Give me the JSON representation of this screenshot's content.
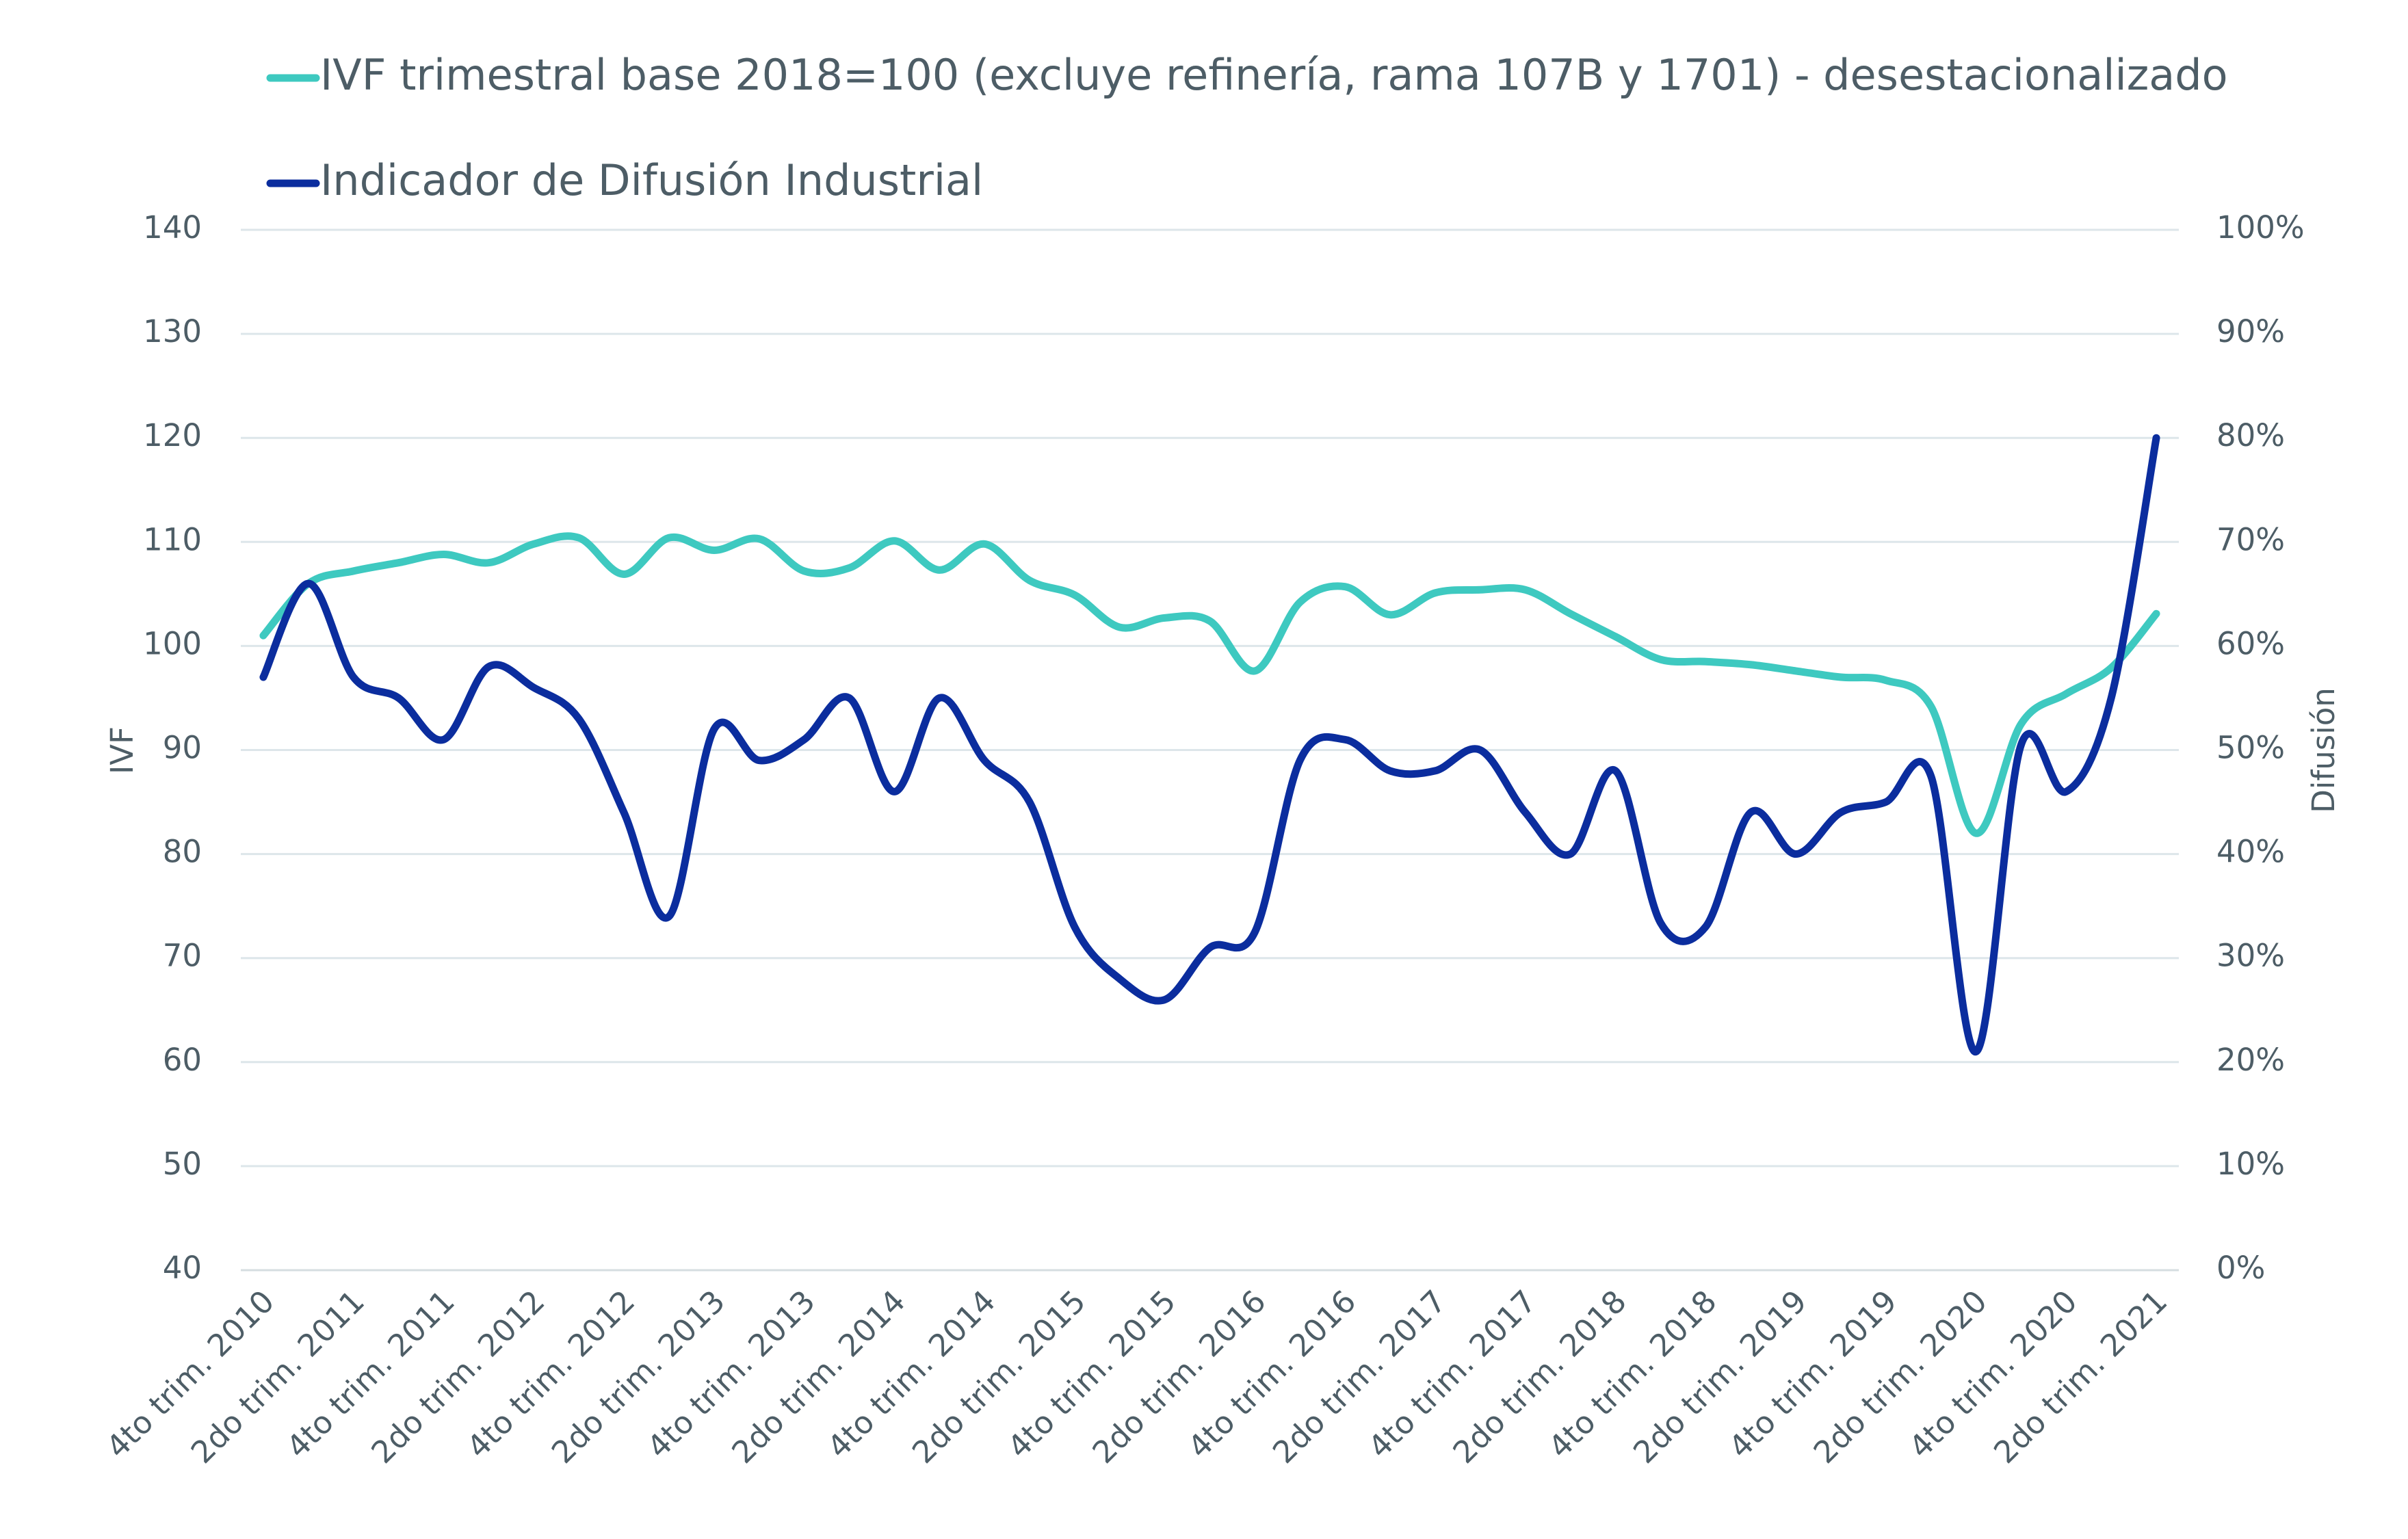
{
  "chart_data": {
    "type": "line",
    "categories": [
      "4to trim. 2010",
      null,
      "2do trim. 2011",
      null,
      "4to trim. 2011",
      null,
      "2do trim. 2012",
      null,
      "4to trim. 2012",
      null,
      "2do trim. 2013",
      null,
      "4to trim. 2013",
      null,
      "2do trim. 2014",
      null,
      "4to trim. 2014",
      null,
      "2do trim. 2015",
      null,
      "4to trim. 2015",
      null,
      "2do trim. 2016",
      null,
      "4to trim. 2016",
      null,
      "2do trim. 2017",
      null,
      "4to trim. 2017",
      null,
      "2do trim. 2018",
      null,
      "4to trim. 2018",
      null,
      "2do trim. 2019",
      null,
      "4to trim. 2019",
      null,
      "2do trim. 2020",
      null,
      "4to trim. 2020",
      null,
      "2do trim. 2021"
    ],
    "series": [
      {
        "name": "IVF trimestral base 2018=100 (excluye refinería, rama 107B y 1701) - desestacionalizado",
        "color": "#3ec9c0",
        "values": [
          101,
          106,
          107.2,
          108,
          108.8,
          108,
          109.8,
          110.4,
          106.9,
          110.4,
          109.2,
          110.3,
          107.2,
          107.5,
          110.1,
          107.3,
          109.8,
          106.3,
          104.9,
          101.8,
          102.7,
          102.4,
          97.6,
          104.2,
          105.7,
          103,
          105.1,
          105.4,
          105.4,
          103.1,
          100.9,
          98.7,
          98.5,
          98.2,
          97.6,
          97,
          96.7,
          94.2,
          82,
          92.5,
          95.4,
          97.9,
          103.1
        ]
      },
      {
        "name": "Indicador de Difusión Industrial",
        "color": "#0b2d9e",
        "axis": "y2",
        "values": [
          57,
          66,
          57,
          55,
          51,
          58,
          56,
          53,
          44,
          34,
          52,
          49,
          51,
          55,
          46,
          55,
          49,
          45,
          33,
          28,
          26,
          31,
          32.5,
          49,
          51,
          48,
          48,
          50,
          44,
          40,
          48,
          33.4,
          33,
          44,
          40,
          44,
          45,
          47.5,
          21,
          50.5,
          46,
          55,
          80
        ]
      }
    ],
    "ylabel": "IVF",
    "y2label": "Difusión",
    "ylim": [
      40,
      140
    ],
    "yticks": [
      40,
      50,
      60,
      70,
      80,
      90,
      100,
      110,
      120,
      130,
      140
    ],
    "y2lim": [
      0,
      100
    ],
    "y2ticks": [
      {
        "value": 0,
        "label": "0%"
      },
      {
        "value": 10,
        "label": "10%"
      },
      {
        "value": 20,
        "label": "20%"
      },
      {
        "value": 30,
        "label": "30%"
      },
      {
        "value": 40,
        "label": "40%"
      },
      {
        "value": 50,
        "label": "50%"
      },
      {
        "value": 60,
        "label": "60%"
      },
      {
        "value": 70,
        "label": "70%"
      },
      {
        "value": 80,
        "label": "80%"
      },
      {
        "value": 90,
        "label": "90%"
      },
      {
        "value": 100,
        "label": "100%"
      }
    ],
    "grid": true,
    "legend": "top left"
  }
}
